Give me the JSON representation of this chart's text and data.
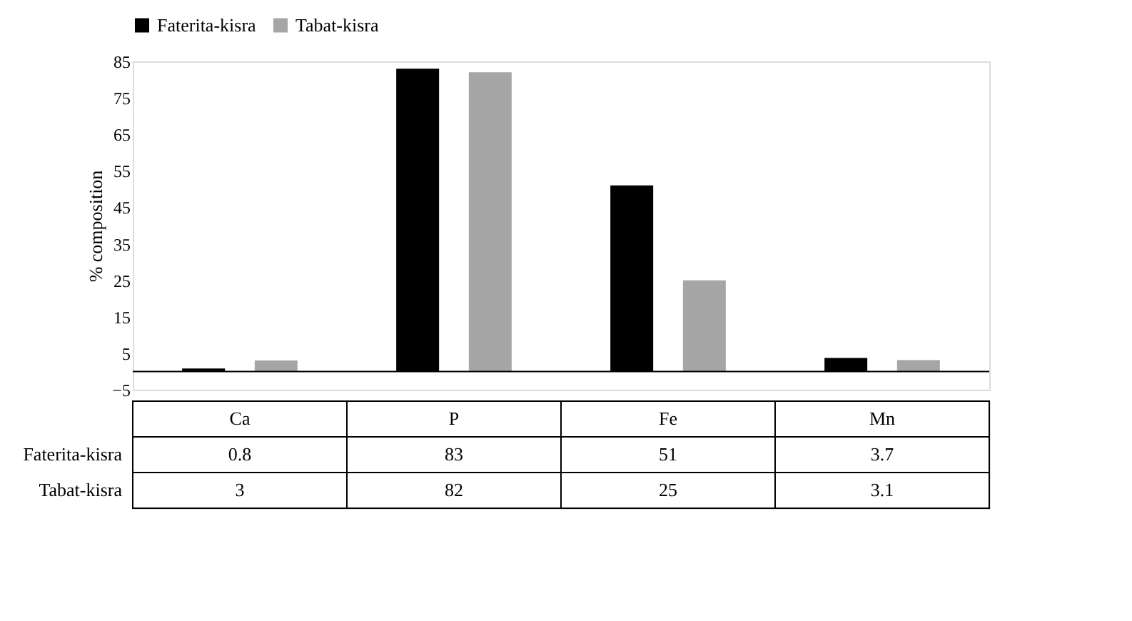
{
  "chart_data": {
    "type": "bar",
    "ylabel": "% composition",
    "categories": [
      "Ca",
      "P",
      "Fe",
      "Mn"
    ],
    "series": [
      {
        "name": "Faterita-kisra",
        "color": "#000000",
        "values": [
          0.8,
          83,
          51,
          3.7
        ]
      },
      {
        "name": "Tabat-kisra",
        "color": "#a6a6a6",
        "values": [
          3,
          82,
          25,
          3.1
        ]
      }
    ],
    "ylim": [
      -5,
      85
    ],
    "yticks": [
      -5,
      5,
      15,
      25,
      35,
      45,
      55,
      65,
      75,
      85
    ],
    "grid": false,
    "legend": "top",
    "data_labels": true
  }
}
